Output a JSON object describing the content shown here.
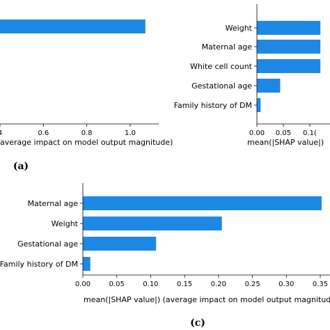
{
  "bar_color": "#1e88e5",
  "chart_data": [
    {
      "type": "bar",
      "orientation": "horizontal",
      "panel_label": "(a)",
      "categories": [
        ""
      ],
      "values": [
        1.07
      ],
      "xlabel": "average impact on model output magnitude)",
      "xticks": [
        "4",
        "0.6",
        "0.8",
        "1.0"
      ],
      "grid": false
    },
    {
      "type": "bar",
      "orientation": "horizontal",
      "panel_label": "",
      "categories": [
        "Weight",
        "Maternal age",
        "White cell count",
        "Gestational age",
        "Family history of DM"
      ],
      "values": [
        0.12,
        0.12,
        0.12,
        0.044,
        0.007
      ],
      "xlabel": "mean(|SHAP value|)",
      "xticks": [
        "0.00",
        "0.05",
        "0.1("
      ],
      "grid": false
    },
    {
      "type": "bar",
      "orientation": "horizontal",
      "panel_label": "(c)",
      "categories": [
        "Maternal age",
        "Weight",
        "Gestational age",
        "Family history of DM"
      ],
      "values": [
        0.352,
        0.205,
        0.108,
        0.011
      ],
      "xlabel": "mean(|SHAP value|) (average impact on model output magnitud",
      "xticks": [
        "0.00",
        "0.05",
        "0.10",
        "0.15",
        "0.20",
        "0.25",
        "0.30",
        "0.35"
      ],
      "grid": false
    }
  ]
}
